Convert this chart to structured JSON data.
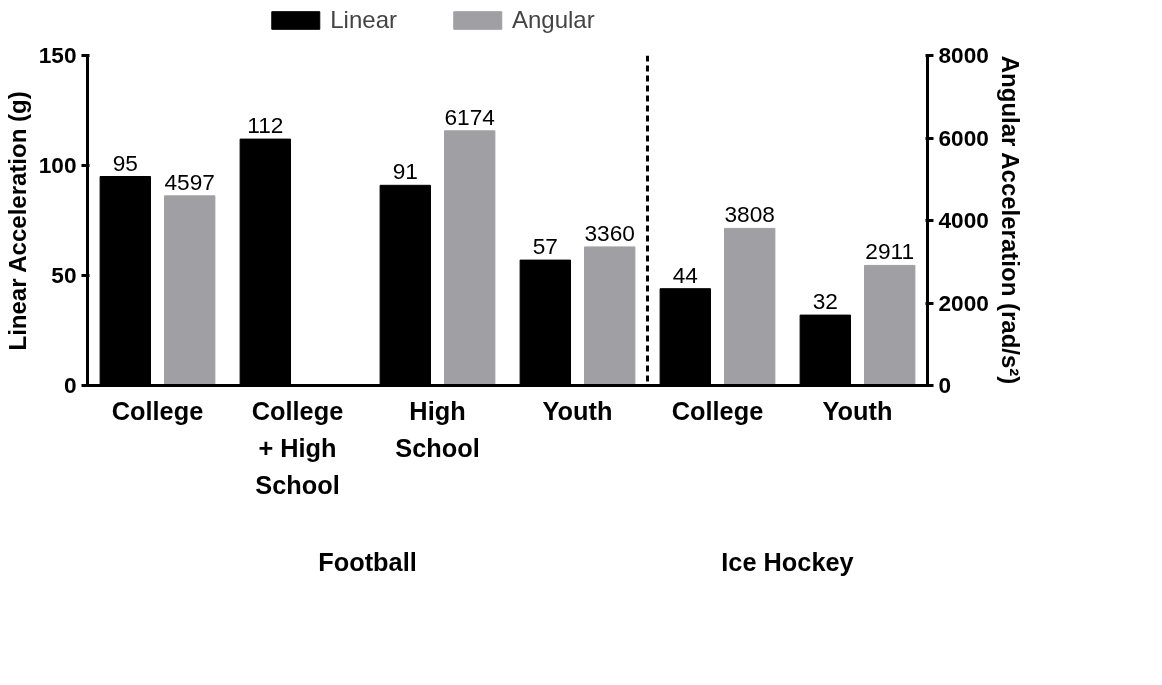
{
  "chart_data": {
    "type": "bar",
    "categories": [
      "College",
      "College\n+ High\nSchool",
      "High\nSchool",
      "Youth",
      "College",
      "Youth"
    ],
    "series": [
      {
        "name": "Linear",
        "color": "#000000",
        "values": [
          95,
          112,
          91,
          57,
          44,
          32
        ]
      },
      {
        "name": "Angular",
        "color": "#a0a0a4",
        "axis": "y2",
        "values": [
          4597,
          null,
          6174,
          3360,
          3808,
          2911
        ]
      }
    ],
    "ylabel": "Linear Acceleration (g)",
    "y2label": "Angular Acceleration (rad/s²)",
    "ylim": [
      0,
      150
    ],
    "yticks": [
      0,
      50,
      100,
      150
    ],
    "y2lim": [
      0,
      8000
    ],
    "y2ticks": [
      0,
      2000,
      4000,
      6000,
      8000
    ],
    "annotations": [
      "Football",
      "Ice Hockey"
    ],
    "data_labels": true,
    "legend": "top",
    "grid": false
  }
}
